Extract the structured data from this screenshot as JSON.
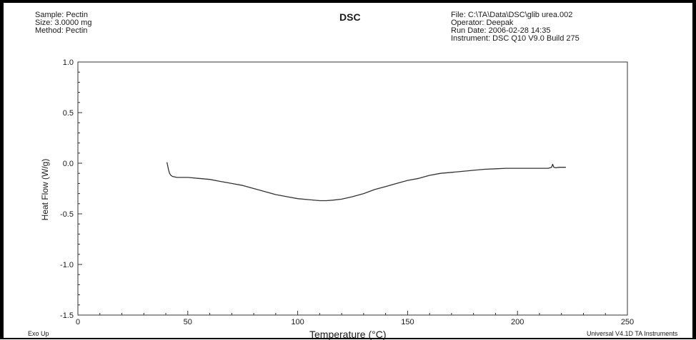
{
  "header": {
    "left": [
      "Sample: Pectin",
      "Size:  3.0000 mg",
      "Method: Pectin"
    ],
    "title": "DSC",
    "right": [
      "File: C:\\TA\\Data\\DSC\\glib urea.002",
      "Operator: Deepak",
      "Run Date: 2006-02-28 14:35",
      "Instrument: DSC Q10 V9.0 Build 275"
    ]
  },
  "footer": {
    "left": "Exo Up",
    "right": "Universal V4.1D TA Instruments"
  },
  "chart_data": {
    "type": "line",
    "title": "DSC",
    "xlabel": "Temperature (°C)",
    "ylabel": "Heat Flow (W/g)",
    "xlim": [
      0,
      250
    ],
    "ylim": [
      -1.5,
      1.0
    ],
    "xticks": [
      0,
      50,
      100,
      150,
      200,
      250
    ],
    "xtick_labels": [
      "0",
      "50",
      "100",
      "150",
      "200",
      "250"
    ],
    "yticks": [
      -1.5,
      -1.0,
      -0.5,
      0.0,
      0.5,
      1.0
    ],
    "ytick_labels": [
      "-1.5",
      "-1.0",
      "-0.5",
      "0.0",
      "0.5",
      "1.0"
    ],
    "grid": false,
    "series": [
      {
        "color": "#333333",
        "x": [
          40.5,
          40.8,
          41.2,
          41.7,
          42.3,
          43.0,
          45,
          50,
          55,
          60,
          65,
          70,
          75,
          80,
          85,
          90,
          95,
          100,
          105,
          110,
          113,
          116,
          120,
          125,
          130,
          135,
          140,
          145,
          150,
          155,
          160,
          165,
          170,
          175,
          180,
          185,
          190,
          195,
          200,
          205,
          210,
          214,
          215.5,
          216,
          216.5,
          217.5,
          219,
          222
        ],
        "y": [
          0.01,
          -0.02,
          -0.06,
          -0.1,
          -0.12,
          -0.13,
          -0.14,
          -0.14,
          -0.15,
          -0.16,
          -0.18,
          -0.2,
          -0.22,
          -0.25,
          -0.28,
          -0.31,
          -0.33,
          -0.35,
          -0.36,
          -0.37,
          -0.37,
          -0.365,
          -0.355,
          -0.33,
          -0.3,
          -0.26,
          -0.23,
          -0.2,
          -0.17,
          -0.15,
          -0.12,
          -0.1,
          -0.09,
          -0.08,
          -0.07,
          -0.06,
          -0.055,
          -0.05,
          -0.05,
          -0.05,
          -0.05,
          -0.05,
          -0.04,
          -0.01,
          -0.04,
          -0.045,
          -0.04,
          -0.04
        ]
      }
    ]
  }
}
